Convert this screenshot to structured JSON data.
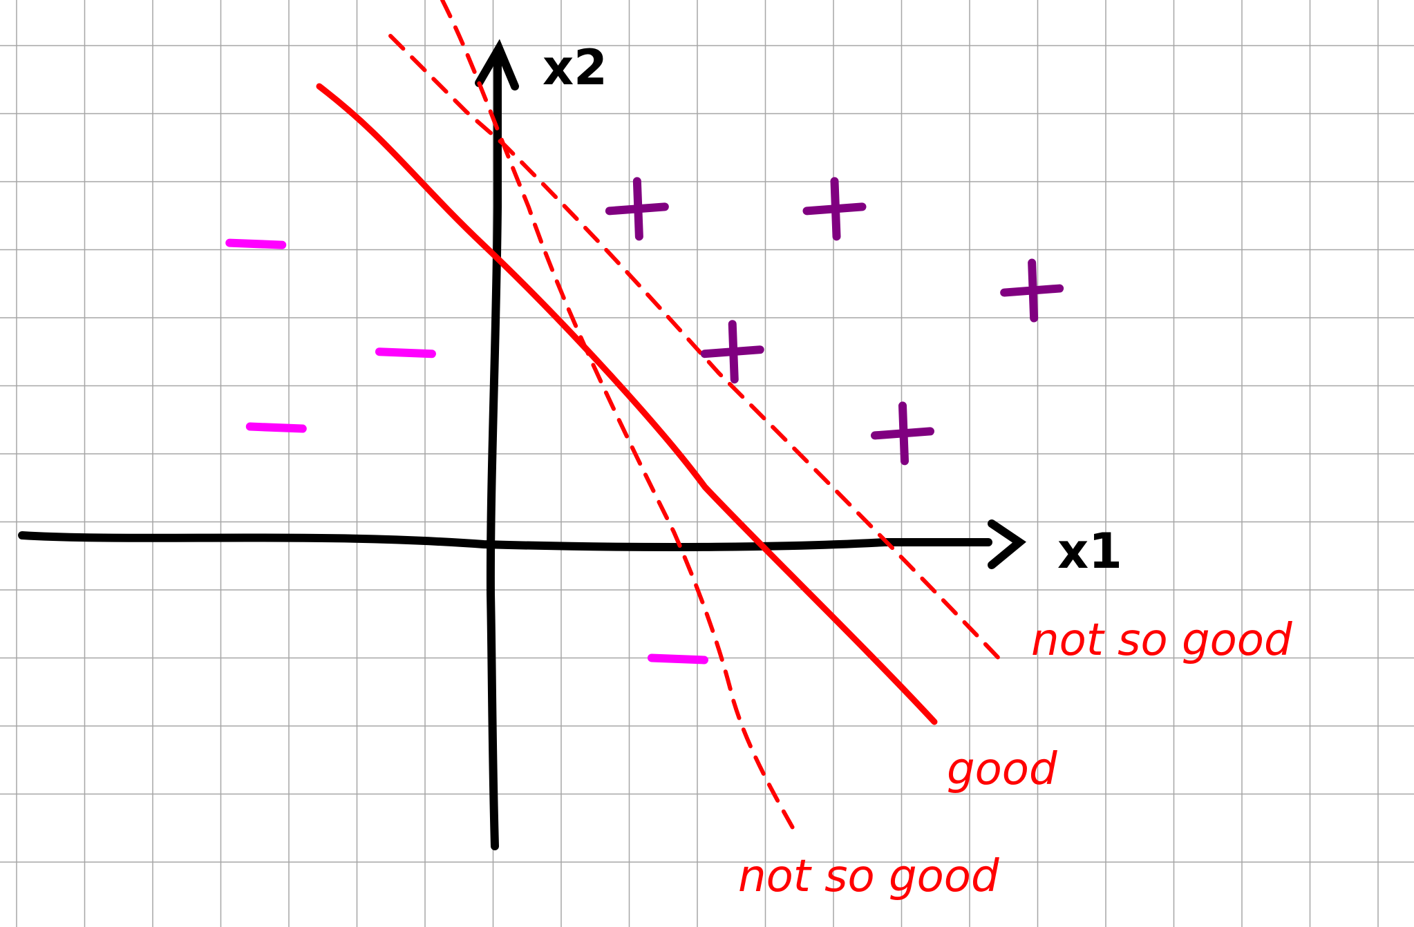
{
  "colors": {
    "background": "#ffffff",
    "grid": "#a6a6a6",
    "axis": "#000000",
    "decision_line": "#ff0000",
    "positive_class": "#800080",
    "negative_class": "#ff00ff"
  },
  "axes": {
    "x_label": "x1",
    "y_label": "x2"
  },
  "classes": {
    "positive_symbol": "+",
    "negative_symbol": "-",
    "positive_points": [
      {
        "x": 2.1,
        "y": 4.9
      },
      {
        "x": 5.0,
        "y": 4.9
      },
      {
        "x": 7.9,
        "y": 3.7
      },
      {
        "x": 3.5,
        "y": 2.8
      },
      {
        "x": 6.0,
        "y": 1.6
      }
    ],
    "negative_points": [
      {
        "x": -3.5,
        "y": 4.4
      },
      {
        "x": -1.3,
        "y": 2.8
      },
      {
        "x": -3.2,
        "y": 1.7
      },
      {
        "x": 2.7,
        "y": -1.7
      }
    ]
  },
  "lines": [
    {
      "id": "good",
      "label": "good",
      "style": "solid"
    },
    {
      "id": "not-so-good-upper",
      "label": "not so good",
      "style": "dashed"
    },
    {
      "id": "not-so-good-lower",
      "label": "not so good",
      "style": "dashed"
    }
  ]
}
